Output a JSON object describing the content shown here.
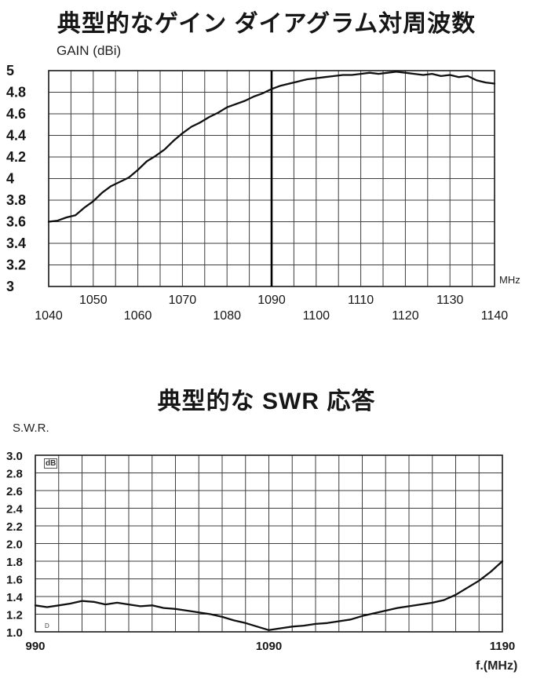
{
  "page": {
    "background": "#ffffff",
    "line_color": "#101010",
    "grid_color": "#3d3d3d"
  },
  "swr_extras": {
    "watermark": "dB",
    "corner_mark": "D"
  },
  "chart_data": [
    {
      "type": "line",
      "title": "典型的なゲイン ダイアグラム対周波数",
      "ylabel": "GAIN (dBi)",
      "xlabel": "MHz",
      "xlim": [
        1040,
        1140
      ],
      "ylim": [
        3,
        5
      ],
      "x_grid_step": 5,
      "y_grid_step": 0.2,
      "grid": true,
      "legend_position": "none",
      "marker_x": 1090,
      "y_ticks": [
        "5",
        "4.8",
        "4.6",
        "4.4",
        "4.2",
        "4",
        "3.8",
        "3.6",
        "3.4",
        "3.2",
        "3"
      ],
      "x_ticks_rows": [
        {
          "values": [
            1050,
            1070,
            1090,
            1110,
            1130
          ],
          "bold_value": 1090
        },
        {
          "values": [
            1040,
            1060,
            1080,
            1100,
            1120,
            1140
          ]
        }
      ],
      "series": [
        {
          "name": "gain",
          "x": [
            1040,
            1042,
            1044,
            1046,
            1048,
            1050,
            1052,
            1054,
            1056,
            1058,
            1060,
            1062,
            1064,
            1066,
            1068,
            1070,
            1072,
            1074,
            1076,
            1078,
            1080,
            1082,
            1084,
            1086,
            1088,
            1090,
            1092,
            1094,
            1096,
            1098,
            1100,
            1102,
            1104,
            1106,
            1108,
            1110,
            1112,
            1114,
            1116,
            1118,
            1120,
            1122,
            1124,
            1126,
            1128,
            1130,
            1132,
            1134,
            1136,
            1138,
            1140
          ],
          "values": [
            3.6,
            3.61,
            3.64,
            3.66,
            3.73,
            3.79,
            3.87,
            3.93,
            3.97,
            4.01,
            4.08,
            4.16,
            4.21,
            4.27,
            4.35,
            4.42,
            4.48,
            4.52,
            4.57,
            4.61,
            4.66,
            4.69,
            4.72,
            4.76,
            4.79,
            4.83,
            4.86,
            4.88,
            4.9,
            4.92,
            4.93,
            4.94,
            4.95,
            4.96,
            4.96,
            4.97,
            4.98,
            4.97,
            4.98,
            4.99,
            4.98,
            4.97,
            4.96,
            4.97,
            4.95,
            4.96,
            4.94,
            4.95,
            4.91,
            4.89,
            4.88
          ]
        }
      ]
    },
    {
      "type": "line",
      "title": "典型的な SWR 応答",
      "ylabel": "S.W.R.",
      "xlabel": "f.(MHz)",
      "xlim": [
        990,
        1190
      ],
      "ylim": [
        1.0,
        3.0
      ],
      "x_grid_step": 10,
      "y_grid_step": 0.2,
      "grid": true,
      "legend_position": "none",
      "y_ticks": [
        "3.0",
        "2.8",
        "2.6",
        "2.4",
        "2.2",
        "2.0",
        "1.8",
        "1.6",
        "1.4",
        "1.2",
        "1.0"
      ],
      "x_ticks_rows": [
        {
          "values": [
            990,
            1090,
            1190
          ]
        }
      ],
      "series": [
        {
          "name": "swr",
          "x": [
            990,
            995,
            1000,
            1005,
            1010,
            1015,
            1020,
            1025,
            1030,
            1035,
            1040,
            1045,
            1050,
            1055,
            1060,
            1065,
            1070,
            1075,
            1080,
            1085,
            1090,
            1095,
            1100,
            1105,
            1110,
            1115,
            1120,
            1125,
            1130,
            1135,
            1140,
            1145,
            1150,
            1155,
            1160,
            1165,
            1170,
            1175,
            1180,
            1185,
            1190
          ],
          "values": [
            1.3,
            1.28,
            1.3,
            1.32,
            1.35,
            1.34,
            1.31,
            1.33,
            1.31,
            1.29,
            1.3,
            1.27,
            1.26,
            1.24,
            1.22,
            1.2,
            1.17,
            1.13,
            1.1,
            1.06,
            1.02,
            1.04,
            1.06,
            1.07,
            1.09,
            1.1,
            1.12,
            1.14,
            1.18,
            1.21,
            1.24,
            1.27,
            1.29,
            1.31,
            1.33,
            1.36,
            1.42,
            1.5,
            1.58,
            1.68,
            1.8
          ]
        }
      ]
    }
  ]
}
